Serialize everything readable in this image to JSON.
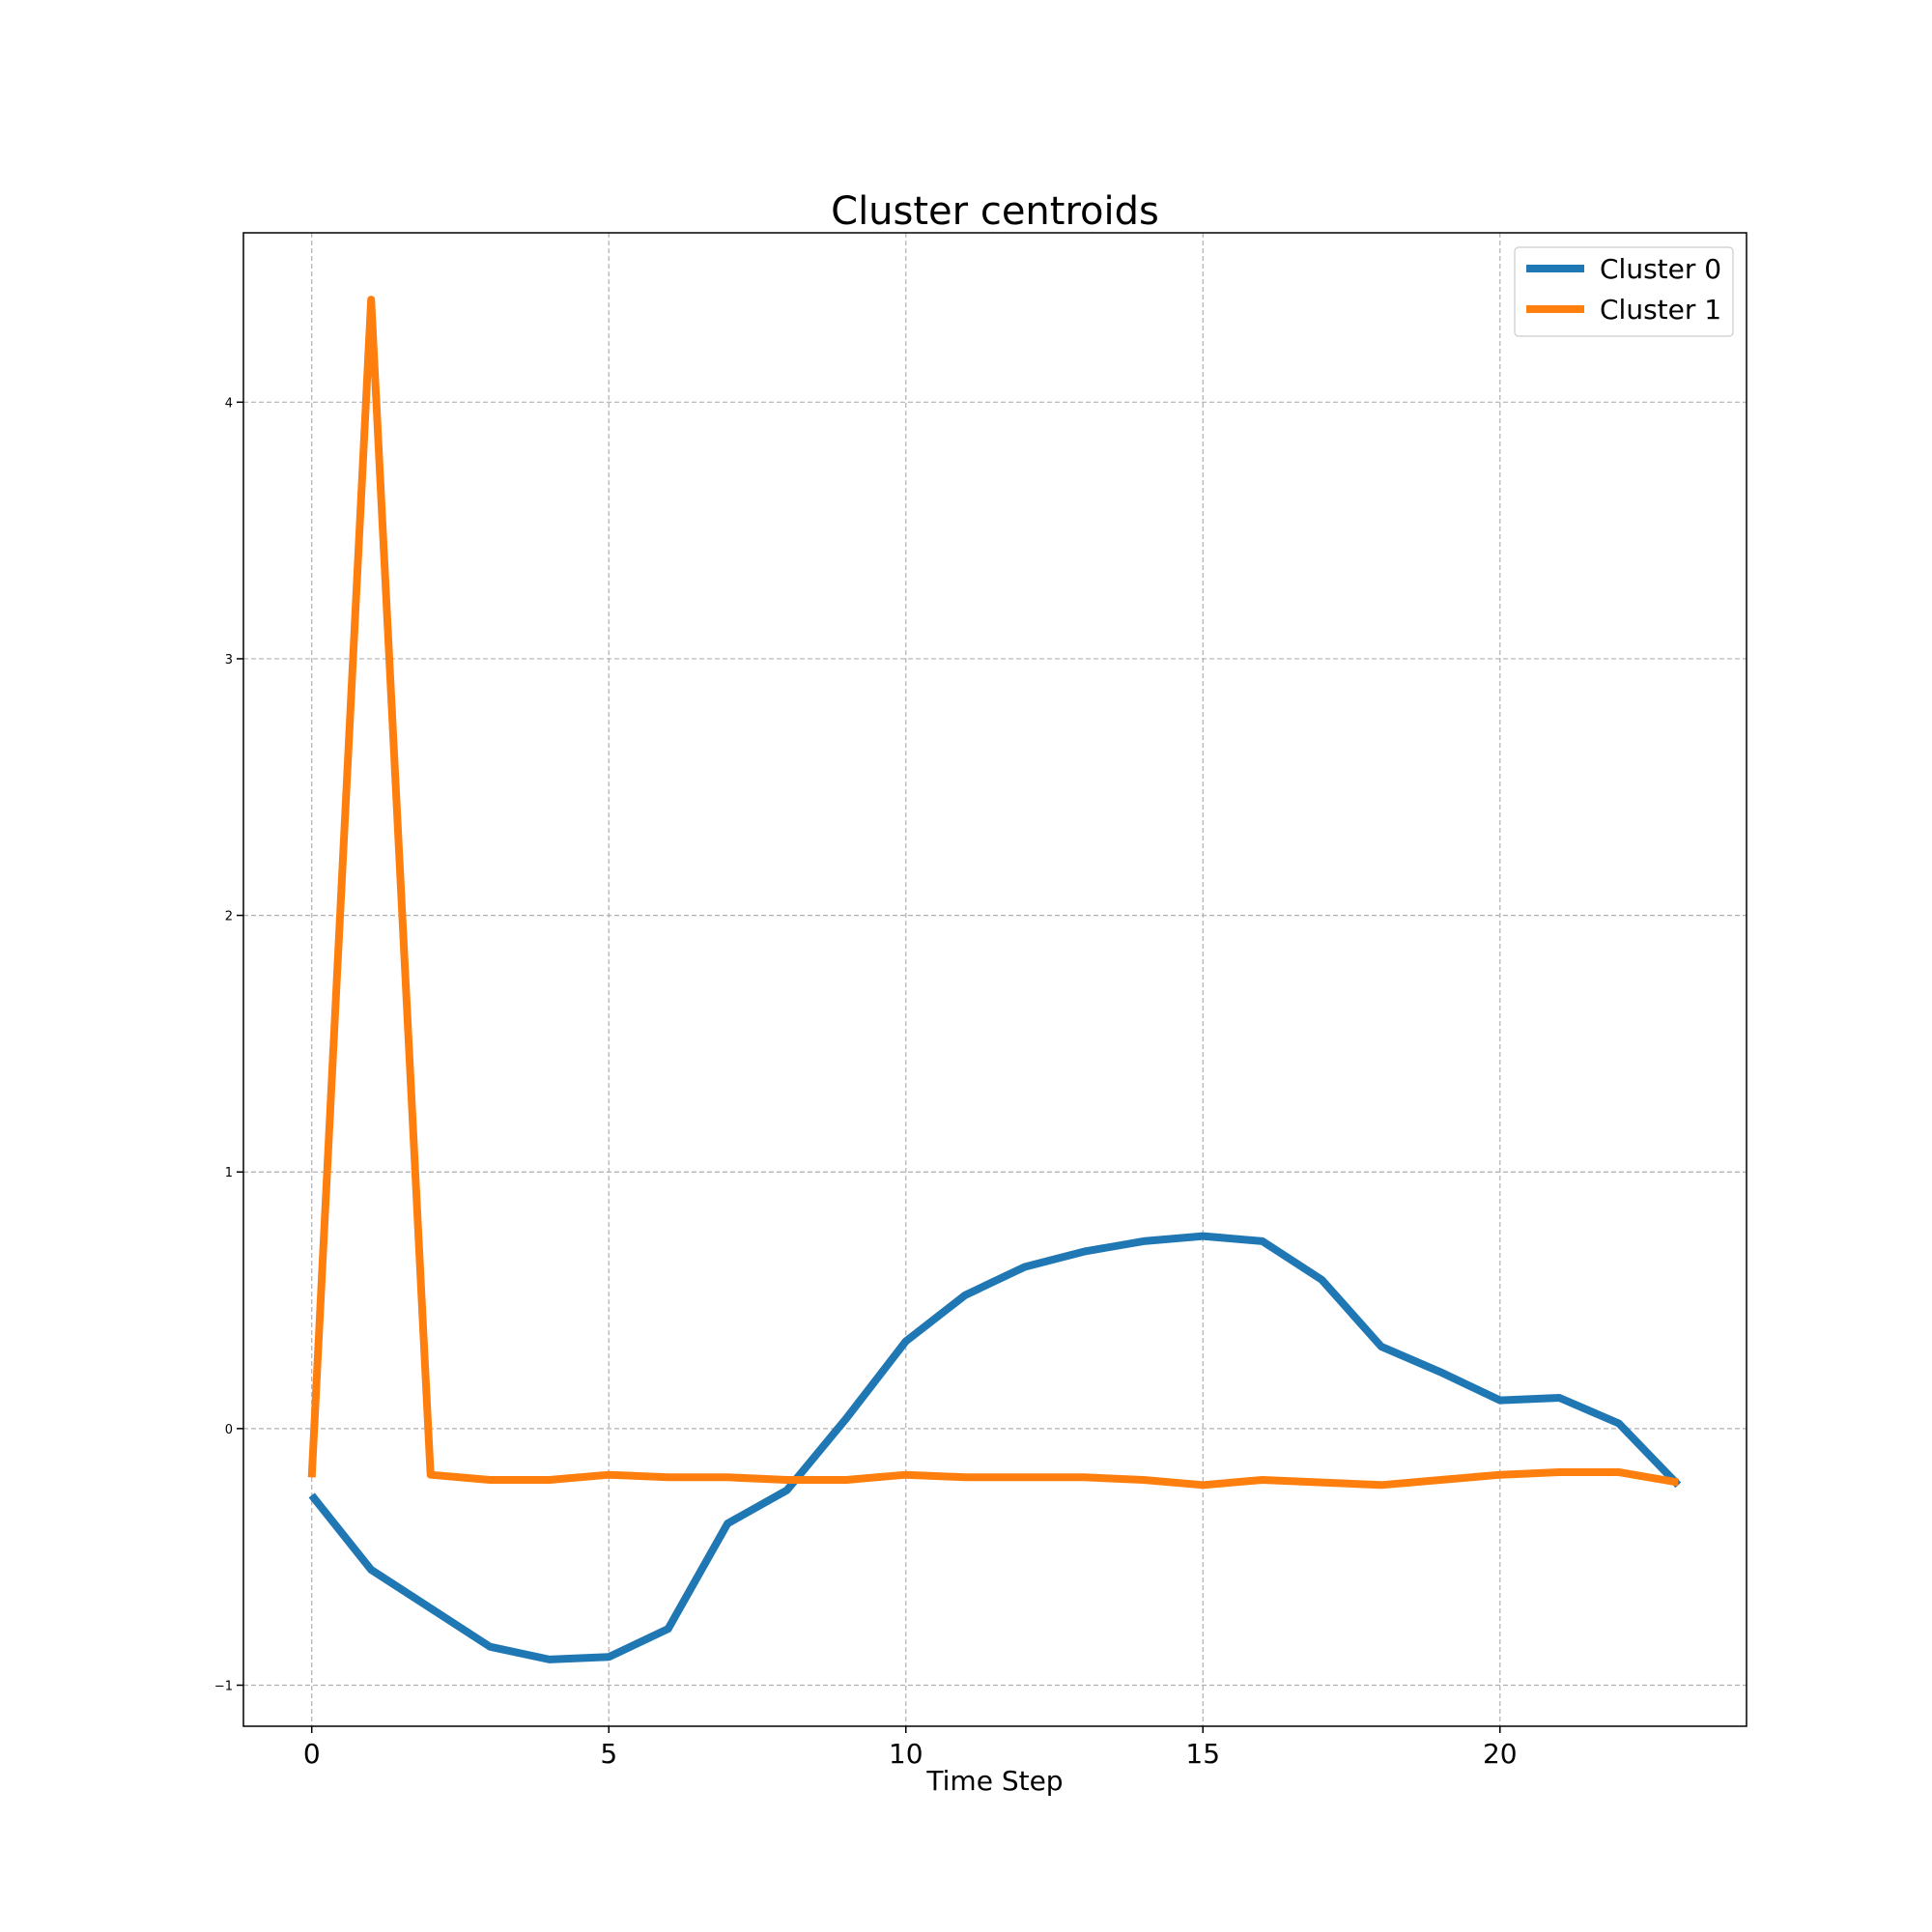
{
  "chart_data": {
    "type": "line",
    "title": "Cluster centroids",
    "xlabel": "Time Step",
    "ylabel": "",
    "xlim": [
      -1.15,
      24.15
    ],
    "ylim": [
      -1.16,
      4.66
    ],
    "xticks": [
      0,
      5,
      10,
      15,
      20
    ],
    "xtick_labels": [
      "0",
      "5",
      "10",
      "15",
      "20"
    ],
    "yticks": [
      -1,
      0,
      1,
      2,
      3,
      4
    ],
    "ytick_labels": [
      "−1",
      "0",
      "1",
      "2",
      "3",
      "4"
    ],
    "grid": true,
    "legend_position": "top-right",
    "x": [
      0,
      1,
      2,
      3,
      4,
      5,
      6,
      7,
      8,
      9,
      10,
      11,
      12,
      13,
      14,
      15,
      16,
      17,
      18,
      19,
      20,
      21,
      22,
      23
    ],
    "series": [
      {
        "name": "Cluster 0",
        "color": "#1f77b4",
        "values": [
          -0.26,
          -0.55,
          -0.7,
          -0.85,
          -0.9,
          -0.89,
          -0.78,
          -0.37,
          -0.24,
          0.04,
          0.34,
          0.52,
          0.63,
          0.69,
          0.73,
          0.75,
          0.73,
          0.58,
          0.32,
          0.22,
          0.11,
          0.12,
          0.02,
          -0.22
        ]
      },
      {
        "name": "Cluster 1",
        "color": "#ff7f0e",
        "values": [
          -0.19,
          4.4,
          -0.18,
          -0.2,
          -0.2,
          -0.18,
          -0.19,
          -0.19,
          -0.2,
          -0.2,
          -0.18,
          -0.19,
          -0.19,
          -0.19,
          -0.2,
          -0.22,
          -0.2,
          -0.21,
          -0.22,
          -0.2,
          -0.18,
          -0.17,
          -0.17,
          -0.21
        ]
      }
    ]
  }
}
